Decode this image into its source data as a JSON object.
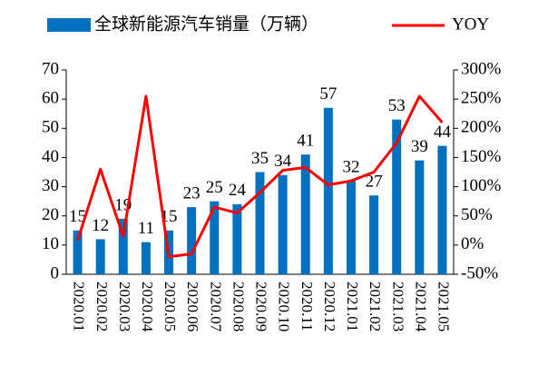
{
  "chart_data": {
    "type": "bar",
    "categories": [
      "2020.01",
      "2020.02",
      "2020.03",
      "2020.04",
      "2020.05",
      "2020.06",
      "2020.07",
      "2020.08",
      "2020.09",
      "2020.10",
      "2020.11",
      "2020.12",
      "2021.01",
      "2021.02",
      "2021.03",
      "2021.04",
      "2021.05"
    ],
    "series": [
      {
        "name": "全球新能源汽车销量（万辆）",
        "type": "bar",
        "color": "#0070c0",
        "values": [
          15,
          12,
          19,
          11,
          15,
          23,
          25,
          24,
          35,
          34,
          41,
          57,
          32,
          27,
          53,
          39,
          44
        ]
      },
      {
        "name": "YOY",
        "type": "line",
        "axis": "y2",
        "color": "#ff0000",
        "values": [
          8,
          130,
          15,
          255,
          -20,
          -15,
          65,
          55,
          90,
          128,
          133,
          103,
          110,
          125,
          175,
          255,
          210
        ]
      }
    ],
    "ylim": [
      0,
      70
    ],
    "yticks": [
      0,
      10,
      20,
      30,
      40,
      50,
      60,
      70
    ],
    "y2lim": [
      -50,
      300
    ],
    "y2ticks": [
      {
        "value": -50,
        "label": "-50%"
      },
      {
        "value": 0,
        "label": "0%"
      },
      {
        "value": 50,
        "label": "50%"
      },
      {
        "value": 100,
        "label": "100%"
      },
      {
        "value": 150,
        "label": "150%"
      },
      {
        "value": 200,
        "label": "200%"
      },
      {
        "value": 250,
        "label": "250%"
      },
      {
        "value": 300,
        "label": "300%"
      }
    ],
    "grid": false
  }
}
